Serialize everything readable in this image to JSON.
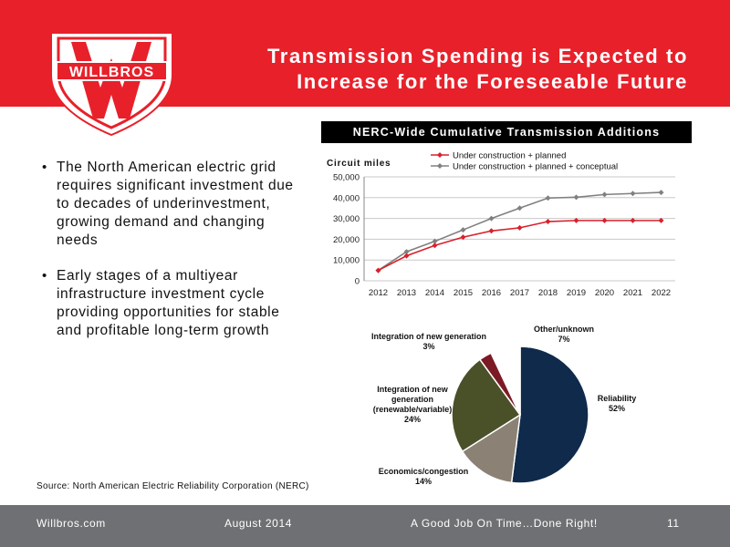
{
  "header": {
    "logo_text": "WILLBROS",
    "title_line1": "Transmission Spending is Expected to",
    "title_line2": "Increase for the Foreseeable Future",
    "background_color": "#e8202a"
  },
  "bullets": [
    "The North American electric grid requires significant investment due to decades of underinvestment, growing demand and changing needs",
    "Early stages of a multiyear infrastructure investment cycle providing opportunities for stable and profitable long-term growth"
  ],
  "source": "Source: North American Electric Reliability Corporation (NERC)",
  "footer": {
    "site": "Willbros.com",
    "date": "August 2014",
    "slogan": "A Good Job On Time…Done Right!",
    "page": "11"
  },
  "chart_data": [
    {
      "type": "line",
      "title": "NERC-Wide Cumulative Transmission Additions",
      "ylabel": "Circuit miles",
      "xlabel": "",
      "x": [
        "2012",
        "2013",
        "2014",
        "2015",
        "2016",
        "2017",
        "2018",
        "2019",
        "2020",
        "2021",
        "2022"
      ],
      "ylim": [
        0,
        50000
      ],
      "yticks": [
        0,
        10000,
        20000,
        30000,
        40000,
        50000
      ],
      "ytick_labels": [
        "0",
        "10,000",
        "20,000",
        "30,000",
        "40,000",
        "50,000"
      ],
      "grid": true,
      "legend_position": "top",
      "series": [
        {
          "name": "Under construction + planned",
          "color": "#d9202b",
          "values": [
            5000,
            12000,
            17000,
            21000,
            24000,
            25500,
            28500,
            29000,
            29000,
            29000,
            29000
          ]
        },
        {
          "name": "Under construction + planned + conceptual",
          "color": "#808080",
          "values": [
            5000,
            14000,
            19000,
            24500,
            30000,
            35000,
            39800,
            40200,
            41500,
            42000,
            42500
          ]
        }
      ]
    },
    {
      "type": "pie",
      "slices": [
        {
          "label": "Reliability",
          "value": 52,
          "value_label": "52%",
          "color": "#0f2a4a"
        },
        {
          "label": "Economics/congestion",
          "value": 14,
          "value_label": "14%",
          "color": "#8b8275"
        },
        {
          "label": "Integration of new generation (renewable/variable)",
          "value": 24,
          "value_label": "24%",
          "color": "#4a5129"
        },
        {
          "label": "Integration of new generation",
          "value": 3,
          "value_label": "3%",
          "color": "#7b1a25"
        },
        {
          "label": "Other/unknown",
          "value": 7,
          "value_label": "7%",
          "color": "#ffffff"
        }
      ]
    }
  ]
}
